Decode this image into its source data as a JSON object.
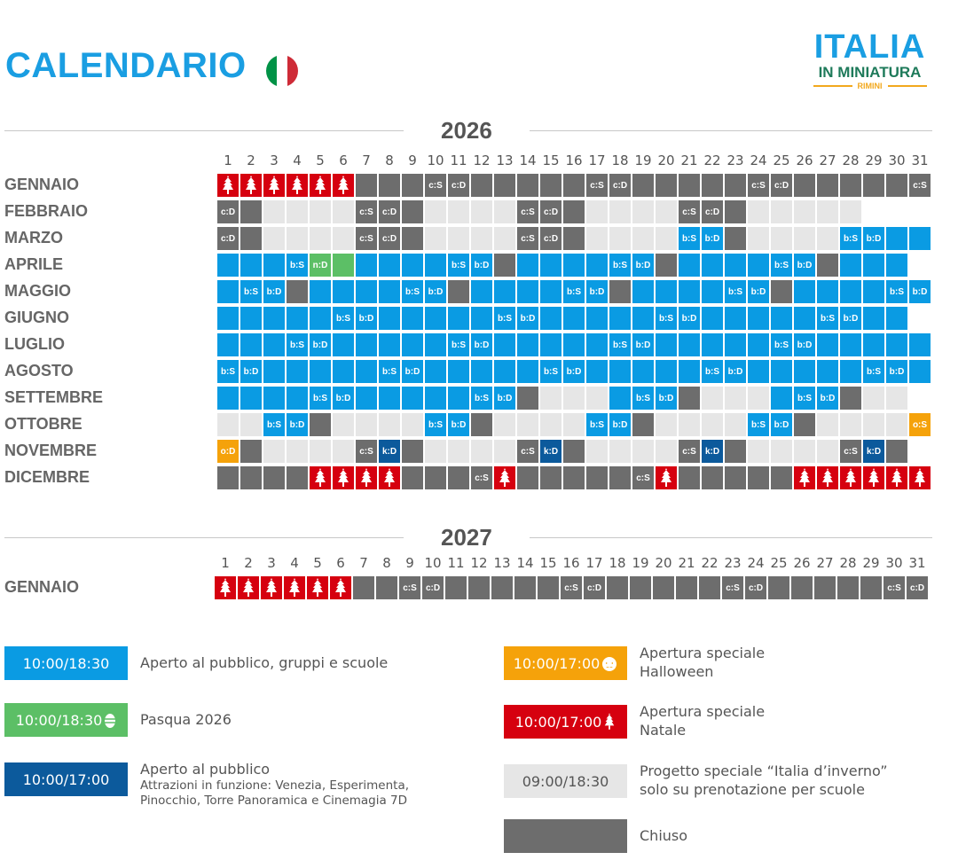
{
  "header": {
    "title": "CALENDARIO",
    "flag_colors": [
      "#009246",
      "#ffffff",
      "#ce2b37"
    ],
    "logo": {
      "line1": "ITALIA",
      "line2": "IN MINIATURA",
      "line3": "RIMINI"
    }
  },
  "colors": {
    "b": "#0a9be3",
    "c": "#6d6d6d",
    "l": "#e6e6e6",
    "r": "#d6000f",
    "n": "#5cbf66",
    "o": "#f5a20a",
    "k": "#0c5a9c"
  },
  "days": [
    "1",
    "2",
    "3",
    "4",
    "5",
    "6",
    "7",
    "8",
    "9",
    "10",
    "11",
    "12",
    "13",
    "14",
    "15",
    "16",
    "17",
    "18",
    "19",
    "20",
    "21",
    "22",
    "23",
    "24",
    "25",
    "26",
    "27",
    "28",
    "29",
    "30",
    "31"
  ],
  "calendars": [
    {
      "year": "2026",
      "months": [
        {
          "name": "GENNAIO",
          "cells": [
            "r",
            "r",
            "r",
            "r",
            "r",
            "r",
            "c",
            "c",
            "c",
            "c:S",
            "c:D",
            "c",
            "c",
            "c",
            "c",
            "c",
            "c:S",
            "c:D",
            "c",
            "c",
            "c",
            "c",
            "c",
            "c:S",
            "c:D",
            "c",
            "c",
            "c",
            "c",
            "c",
            "c:S"
          ]
        },
        {
          "name": "FEBBRAIO",
          "cells": [
            "c:D",
            "c",
            "l",
            "l",
            "l",
            "l",
            "c:S",
            "c:D",
            "c",
            "l",
            "l",
            "l",
            "l",
            "c:S",
            "c:D",
            "c",
            "l",
            "l",
            "l",
            "l",
            "c:S",
            "c:D",
            "c",
            "l",
            "l",
            "l",
            "l",
            "l"
          ]
        },
        {
          "name": "MARZO",
          "cells": [
            "c:D",
            "c",
            "l",
            "l",
            "l",
            "l",
            "c:S",
            "c:D",
            "c",
            "l",
            "l",
            "l",
            "l",
            "c:S",
            "c:D",
            "c",
            "l",
            "l",
            "l",
            "l",
            "b:S",
            "b:D",
            "c",
            "l",
            "l",
            "l",
            "l",
            "b:S",
            "b:D",
            "b",
            "b"
          ]
        },
        {
          "name": "APRILE",
          "cells": [
            "b",
            "b",
            "b",
            "b:S",
            "n:D",
            "n",
            "b",
            "b",
            "b",
            "b",
            "b:S",
            "b:D",
            "c",
            "b",
            "b",
            "b",
            "b",
            "b:S",
            "b:D",
            "c",
            "b",
            "b",
            "b",
            "b",
            "b:S",
            "b:D",
            "c",
            "b",
            "b",
            "b"
          ]
        },
        {
          "name": "MAGGIO",
          "cells": [
            "b",
            "b:S",
            "b:D",
            "c",
            "b",
            "b",
            "b",
            "b",
            "b:S",
            "b:D",
            "c",
            "b",
            "b",
            "b",
            "b",
            "b:S",
            "b:D",
            "c",
            "b",
            "b",
            "b",
            "b",
            "b:S",
            "b:D",
            "c",
            "b",
            "b",
            "b",
            "b",
            "b:S",
            "b:D"
          ]
        },
        {
          "name": "GIUGNO",
          "cells": [
            "b",
            "b",
            "b",
            "b",
            "b",
            "b:S",
            "b:D",
            "b",
            "b",
            "b",
            "b",
            "b",
            "b:S",
            "b:D",
            "b",
            "b",
            "b",
            "b",
            "b",
            "b:S",
            "b:D",
            "b",
            "b",
            "b",
            "b",
            "b",
            "b:S",
            "b:D",
            "b",
            "b"
          ]
        },
        {
          "name": "LUGLIO",
          "cells": [
            "b",
            "b",
            "b",
            "b:S",
            "b:D",
            "b",
            "b",
            "b",
            "b",
            "b",
            "b:S",
            "b:D",
            "b",
            "b",
            "b",
            "b",
            "b",
            "b:S",
            "b:D",
            "b",
            "b",
            "b",
            "b",
            "b",
            "b:S",
            "b:D",
            "b",
            "b",
            "b",
            "b",
            "b"
          ]
        },
        {
          "name": "AGOSTO",
          "cells": [
            "b:S",
            "b:D",
            "b",
            "b",
            "b",
            "b",
            "b",
            "b:S",
            "b:D",
            "b",
            "b",
            "b",
            "b",
            "b",
            "b:S",
            "b:D",
            "b",
            "b",
            "b",
            "b",
            "b",
            "b:S",
            "b:D",
            "b",
            "b",
            "b",
            "b",
            "b",
            "b:S",
            "b:D",
            "b"
          ]
        },
        {
          "name": "SETTEMBRE",
          "cells": [
            "b",
            "b",
            "b",
            "b",
            "b:S",
            "b:D",
            "b",
            "b",
            "b",
            "b",
            "b",
            "b:S",
            "b:D",
            "c",
            "l",
            "l",
            "l",
            "b",
            "b:S",
            "b:D",
            "c",
            "l",
            "l",
            "l",
            "b",
            "b:S",
            "b:D",
            "c",
            "l",
            "l"
          ]
        },
        {
          "name": "OTTOBRE",
          "cells": [
            "l",
            "l",
            "b:S",
            "b:D",
            "c",
            "l",
            "l",
            "l",
            "l",
            "b:S",
            "b:D",
            "c",
            "l",
            "l",
            "l",
            "l",
            "b:S",
            "b:D",
            "c",
            "l",
            "l",
            "l",
            "l",
            "b:S",
            "b:D",
            "c",
            "l",
            "l",
            "l",
            "l",
            "o:S"
          ]
        },
        {
          "name": "NOVEMBRE",
          "cells": [
            "o:D",
            "c",
            "l",
            "l",
            "l",
            "l",
            "c:S",
            "k:D",
            "c",
            "l",
            "l",
            "l",
            "l",
            "c:S",
            "k:D",
            "c",
            "l",
            "l",
            "l",
            "l",
            "c:S",
            "k:D",
            "c",
            "l",
            "l",
            "l",
            "l",
            "c:S",
            "k:D",
            "c"
          ]
        },
        {
          "name": "DICEMBRE",
          "cells": [
            "c",
            "c",
            "c",
            "c",
            "r",
            "r",
            "r",
            "r",
            "c",
            "c",
            "c",
            "c:S",
            "r",
            "c",
            "c",
            "c",
            "c",
            "c",
            "c:S",
            "r",
            "c",
            "c",
            "c",
            "c",
            "c",
            "r",
            "r",
            "r",
            "r",
            "r",
            "r"
          ]
        }
      ]
    },
    {
      "year": "2027",
      "months": [
        {
          "name": "GENNAIO",
          "cells": [
            "r",
            "r",
            "r",
            "r",
            "r",
            "r",
            "c",
            "c",
            "c:S",
            "c:D",
            "c",
            "c",
            "c",
            "c",
            "c",
            "c:S",
            "c:D",
            "c",
            "c",
            "c",
            "c",
            "c",
            "c:S",
            "c:D",
            "c",
            "c",
            "c",
            "c",
            "c",
            "c:S",
            "c:D"
          ]
        }
      ]
    }
  ],
  "legend": [
    {
      "hours": "10:00/18:30",
      "color": "b",
      "icon": "",
      "text": "Aperto al pubblico, gruppi e scuole",
      "sub": ""
    },
    {
      "hours": "10:00/18:30",
      "color": "n",
      "icon": "easter-egg",
      "text": "Pasqua 2026",
      "sub": ""
    },
    {
      "hours": "10:00/17:00",
      "color": "k",
      "icon": "",
      "text": "Aperto al pubblico",
      "sub": "Attrazioni in funzione: Venezia, Esperimenta, Pinocchio, Torre Panoramica e Cinemagia 7D"
    },
    {
      "hours": "10:00/17:00",
      "color": "o",
      "icon": "pumpkin",
      "text": "Apertura speciale",
      "sub2": "Halloween"
    },
    {
      "hours": "10:00/17:00",
      "color": "r",
      "icon": "christmas-tree",
      "text": "Apertura speciale",
      "sub2": "Natale"
    },
    {
      "hours": "09:00/18:30",
      "color": "l",
      "icon": "",
      "text": "Progetto speciale “Italia d’inverno”",
      "sub2": "solo su prenotazione per scuole"
    },
    {
      "hours": "",
      "color": "c",
      "icon": "",
      "text": "Chiuso",
      "sub": ""
    }
  ]
}
